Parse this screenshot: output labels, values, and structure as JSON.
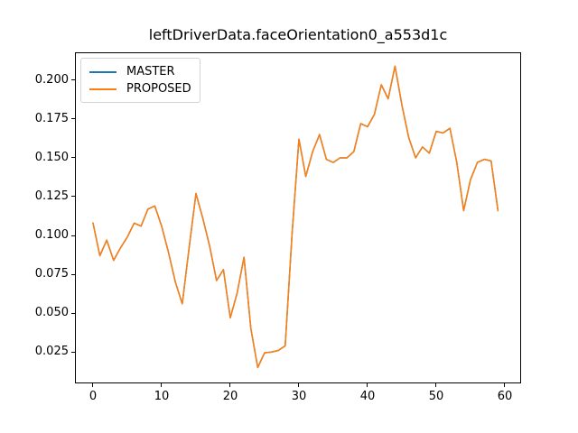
{
  "chart_data": {
    "type": "line",
    "title": "leftDriverData.faceOrientation0_a553d1c",
    "xlabel": "",
    "ylabel": "",
    "grid": false,
    "legend_position": "upper left",
    "x": [
      0,
      1,
      2,
      3,
      4,
      5,
      6,
      7,
      8,
      9,
      10,
      11,
      12,
      13,
      14,
      15,
      16,
      17,
      18,
      19,
      20,
      21,
      22,
      23,
      24,
      25,
      26,
      27,
      28,
      29,
      30,
      31,
      32,
      33,
      34,
      35,
      36,
      37,
      38,
      39,
      40,
      41,
      42,
      43,
      44,
      45,
      46,
      47,
      48,
      49,
      50,
      51,
      52,
      53,
      54,
      55,
      56,
      57,
      58,
      59
    ],
    "series": [
      {
        "name": "MASTER",
        "color": "#1f77b4",
        "values": [
          0.108,
          0.087,
          0.097,
          0.084,
          0.092,
          0.099,
          0.108,
          0.106,
          0.117,
          0.119,
          0.106,
          0.089,
          0.07,
          0.056,
          0.092,
          0.127,
          0.111,
          0.093,
          0.071,
          0.078,
          0.047,
          0.063,
          0.086,
          0.04,
          0.015,
          0.0245,
          0.025,
          0.026,
          0.029,
          0.101,
          0.162,
          0.138,
          0.154,
          0.165,
          0.149,
          0.147,
          0.15,
          0.15,
          0.154,
          0.172,
          0.17,
          0.178,
          0.197,
          0.188,
          0.209,
          0.184,
          0.163,
          0.15,
          0.157,
          0.153,
          0.167,
          0.166,
          0.169,
          0.147,
          0.116,
          0.136,
          0.147,
          0.149,
          0.148,
          0.116
        ]
      },
      {
        "name": "PROPOSED",
        "color": "#ff7f0e",
        "values": [
          0.108,
          0.087,
          0.097,
          0.084,
          0.092,
          0.099,
          0.108,
          0.106,
          0.117,
          0.119,
          0.106,
          0.089,
          0.07,
          0.056,
          0.092,
          0.127,
          0.111,
          0.093,
          0.071,
          0.078,
          0.047,
          0.063,
          0.086,
          0.04,
          0.015,
          0.0245,
          0.025,
          0.026,
          0.029,
          0.101,
          0.162,
          0.138,
          0.154,
          0.165,
          0.149,
          0.147,
          0.15,
          0.15,
          0.154,
          0.172,
          0.17,
          0.178,
          0.197,
          0.188,
          0.209,
          0.184,
          0.163,
          0.15,
          0.157,
          0.153,
          0.167,
          0.166,
          0.169,
          0.147,
          0.116,
          0.136,
          0.147,
          0.149,
          0.148,
          0.116
        ]
      }
    ],
    "x_ticks": [
      {
        "label": "0",
        "value": 0
      },
      {
        "label": "10",
        "value": 10
      },
      {
        "label": "20",
        "value": 20
      },
      {
        "label": "30",
        "value": 30
      },
      {
        "label": "40",
        "value": 40
      },
      {
        "label": "50",
        "value": 50
      },
      {
        "label": "60",
        "value": 60
      }
    ],
    "y_ticks": [
      {
        "label": "0.025",
        "value": 0.025
      },
      {
        "label": "0.050",
        "value": 0.05
      },
      {
        "label": "0.075",
        "value": 0.075
      },
      {
        "label": "0.100",
        "value": 0.1
      },
      {
        "label": "0.125",
        "value": 0.125
      },
      {
        "label": "0.150",
        "value": 0.15
      },
      {
        "label": "0.175",
        "value": 0.175
      },
      {
        "label": "0.200",
        "value": 0.2
      }
    ],
    "xlim": [
      -2.63,
      62.37
    ],
    "ylim": [
      0.0048,
      0.2179
    ]
  },
  "colors": {
    "background": "#ffffff",
    "spine": "#000000",
    "legend_border": "#d2d2d2",
    "master_line": "#1f77b4",
    "proposed_line": "#ff7f0e"
  }
}
